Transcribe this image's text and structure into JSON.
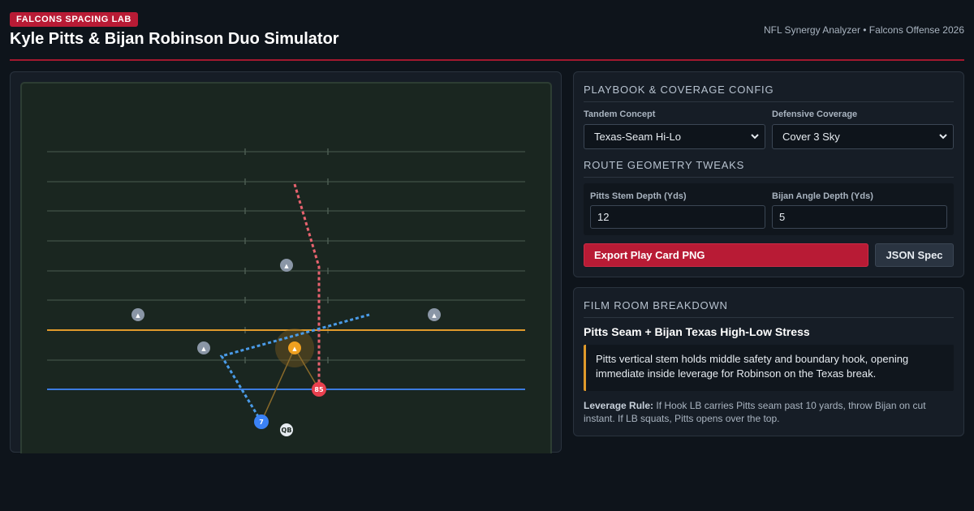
{
  "header": {
    "badge": "FALCONS SPACING LAB",
    "title": "Kyle Pitts & Bijan Robinson Duo Simulator",
    "subtitle": "NFL Synergy Analyzer • Falcons Offense 2026"
  },
  "field": {
    "players": {
      "pitts": "85",
      "bijan": "7",
      "qb": "QB",
      "defender": "▲"
    }
  },
  "config": {
    "playbook_heading": "Playbook & Coverage Config",
    "concept_label": "Tandem Concept",
    "concept_value": "Texas-Seam Hi-Lo",
    "coverage_label": "Defensive Coverage",
    "coverage_value": "Cover 3 Sky",
    "tweaks_heading": "Route Geometry Tweaks",
    "pitts_depth_label": "Pitts Stem Depth (Yds)",
    "pitts_depth_value": "12",
    "bijan_depth_label": "Bijan Angle Depth (Yds)",
    "bijan_depth_value": "5",
    "export_label": "Export Play Card PNG",
    "json_label": "JSON Spec"
  },
  "film": {
    "heading": "Film Room Breakdown",
    "title": "Pitts Seam + Bijan Texas High-Low Stress",
    "quote": "Pitts vertical stem holds middle safety and boundary hook, opening immediate inside leverage for Robinson on the Texas break.",
    "rule_label": "Leverage Rule:",
    "rule_text": "If Hook LB carries Pitts seam past 10 yards, throw Bijan on cut instant. If LB squats, Pitts opens over the top."
  },
  "colors": {
    "accent": "#b81b35",
    "pitts_route": "#e8636f",
    "bijan_route": "#4a9be8",
    "line_of_scrimmage": "#3b7be0",
    "first_down": "#e09a2b",
    "field": "#1a2620"
  },
  "icons": [
    "chevron-down-icon",
    "defender-triangle-icon"
  ]
}
